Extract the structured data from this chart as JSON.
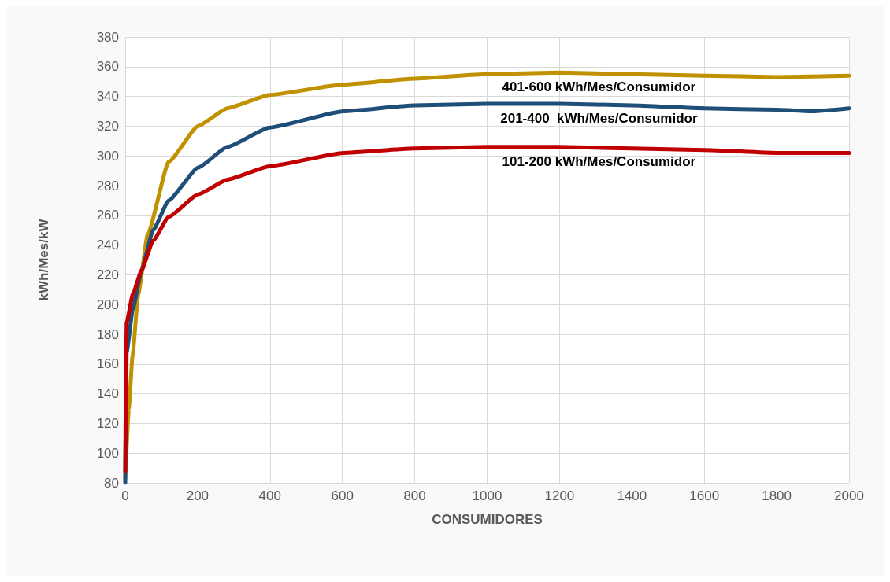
{
  "chart_data": {
    "type": "line",
    "xlabel": "CONSUMIDORES",
    "ylabel": "kWh/Mes/kW",
    "xlim": [
      0,
      2000
    ],
    "ylim": [
      80,
      380
    ],
    "xticks": [
      0,
      200,
      400,
      600,
      800,
      1000,
      1200,
      1400,
      1600,
      1800,
      2000
    ],
    "yticks": [
      80,
      100,
      120,
      140,
      160,
      180,
      200,
      220,
      240,
      260,
      280,
      300,
      320,
      340,
      360,
      380
    ],
    "grid": true,
    "legend": false,
    "marker": "none",
    "line_style": "solid",
    "series": [
      {
        "name": "401-600 kWh/Mes/Consumidor",
        "color": "#c09100",
        "x": [
          0,
          10,
          20,
          36,
          62,
          120,
          201,
          282,
          398,
          603,
          800,
          1000,
          1200,
          1400,
          1600,
          1800,
          2000
        ],
        "values": [
          83,
          130,
          165,
          207,
          247,
          296,
          320,
          332,
          341,
          348,
          352,
          355,
          356,
          355,
          354,
          353,
          354
        ]
      },
      {
        "name": "201-400  kWh/Mes/Consumidor",
        "color": "#1f4e79",
        "x": [
          0,
          2,
          4,
          21,
          45,
          77,
          120,
          201,
          282,
          398,
          603,
          800,
          1000,
          1200,
          1400,
          1600,
          1800,
          1900,
          2000
        ],
        "values": [
          80,
          130,
          168,
          197,
          223,
          250,
          270,
          292,
          306,
          319,
          330,
          334,
          335,
          335,
          334,
          332,
          331,
          330,
          332
        ]
      },
      {
        "name": "101-200 kWh/Mes/Consumidor",
        "color": "#c00000",
        "x": [
          0,
          2,
          4,
          21,
          45,
          77,
          120,
          201,
          282,
          398,
          603,
          800,
          1000,
          1200,
          1400,
          1600,
          1800,
          2000
        ],
        "values": [
          88,
          150,
          188,
          207,
          223,
          243,
          259,
          274,
          284,
          293,
          302,
          305,
          306,
          306,
          305,
          304,
          302,
          302
        ]
      }
    ]
  }
}
